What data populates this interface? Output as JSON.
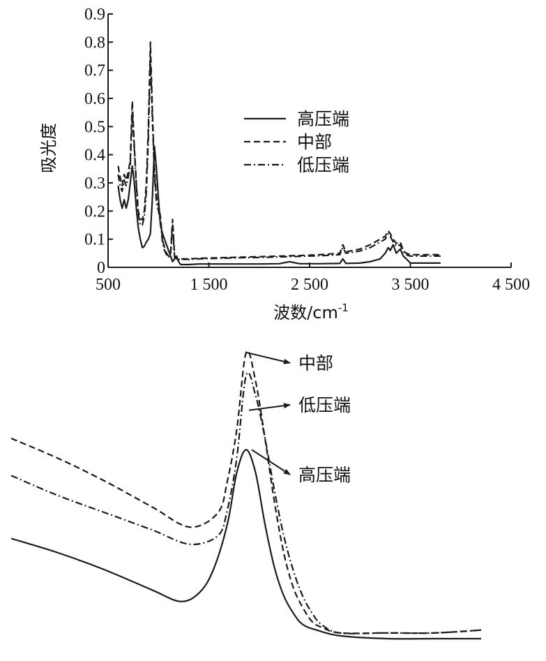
{
  "chart_data": [
    {
      "type": "line",
      "title": "",
      "xlabel": "波数/cm",
      "xlabel_sup": "-1",
      "ylabel": "吸光度",
      "xlim": [
        500,
        4500
      ],
      "ylim": [
        0,
        0.9
      ],
      "x_ticks": [
        500,
        1500,
        2500,
        3500,
        4500
      ],
      "x_tick_labels": [
        "500",
        "1 500",
        "2 500",
        "3 500",
        "4 500"
      ],
      "y_ticks": [
        0,
        0.1,
        0.2,
        0.3,
        0.4,
        0.5,
        0.6,
        0.7,
        0.8,
        0.9
      ],
      "y_tick_labels": [
        "0",
        "0.1",
        "0.2",
        "0.3",
        "0.4",
        "0.5",
        "0.6",
        "0.7",
        "0.8",
        "0.9"
      ],
      "grid": false,
      "legend_position": "center-right",
      "series": [
        {
          "name": "高压端",
          "style": "solid",
          "x": [
            600,
            620,
            640,
            660,
            680,
            700,
            720,
            740,
            760,
            780,
            800,
            820,
            840,
            860,
            880,
            900,
            920,
            940,
            960,
            980,
            1000,
            1020,
            1040,
            1060,
            1080,
            1100,
            1120,
            1140,
            1160,
            1180,
            1200,
            1220,
            1240,
            1260,
            1300,
            1400,
            1600,
            1800,
            2000,
            2200,
            2300,
            2400,
            2600,
            2800,
            2830,
            2860,
            3000,
            3100,
            3200,
            3250,
            3280,
            3300,
            3330,
            3360,
            3400,
            3430,
            3460,
            3500,
            3600,
            3700,
            3800
          ],
          "y": [
            0.29,
            0.24,
            0.21,
            0.24,
            0.21,
            0.24,
            0.3,
            0.36,
            0.3,
            0.21,
            0.14,
            0.1,
            0.07,
            0.075,
            0.09,
            0.1,
            0.12,
            0.25,
            0.43,
            0.35,
            0.24,
            0.15,
            0.12,
            0.1,
            0.08,
            0.06,
            0.04,
            0.02,
            0.03,
            0.04,
            0.02,
            0.01,
            0.01,
            0.01,
            0.01,
            0.012,
            0.012,
            0.012,
            0.012,
            0.013,
            0.02,
            0.013,
            0.013,
            0.014,
            0.03,
            0.014,
            0.015,
            0.02,
            0.03,
            0.05,
            0.07,
            0.06,
            0.08,
            0.05,
            0.065,
            0.04,
            0.03,
            0.015,
            0.015,
            0.015,
            0.015
          ]
        },
        {
          "name": "中部",
          "style": "dashed",
          "x": [
            600,
            620,
            640,
            660,
            680,
            700,
            720,
            740,
            760,
            780,
            800,
            820,
            840,
            860,
            880,
            900,
            920,
            940,
            960,
            980,
            1000,
            1020,
            1040,
            1060,
            1080,
            1100,
            1120,
            1140,
            1160,
            1180,
            1200,
            1220,
            1240,
            1260,
            1300,
            1400,
            1600,
            1800,
            2000,
            2200,
            2400,
            2600,
            2800,
            2830,
            2860,
            3000,
            3100,
            3200,
            3250,
            3280,
            3300,
            3330,
            3360,
            3400,
            3430,
            3460,
            3500,
            3600,
            3700,
            3800
          ],
          "y": [
            0.36,
            0.32,
            0.29,
            0.33,
            0.31,
            0.34,
            0.38,
            0.59,
            0.43,
            0.3,
            0.2,
            0.17,
            0.17,
            0.2,
            0.3,
            0.5,
            0.8,
            0.55,
            0.35,
            0.25,
            0.22,
            0.18,
            0.1,
            0.07,
            0.05,
            0.04,
            0.05,
            0.17,
            0.04,
            0.03,
            0.03,
            0.03,
            0.03,
            0.03,
            0.03,
            0.032,
            0.034,
            0.036,
            0.038,
            0.04,
            0.042,
            0.045,
            0.05,
            0.08,
            0.055,
            0.065,
            0.08,
            0.1,
            0.11,
            0.13,
            0.12,
            0.1,
            0.085,
            0.09,
            0.06,
            0.05,
            0.045,
            0.045,
            0.045,
            0.045
          ]
        },
        {
          "name": "低压端",
          "style": "dashdot",
          "x": [
            600,
            620,
            640,
            660,
            680,
            700,
            720,
            740,
            760,
            780,
            800,
            820,
            840,
            860,
            880,
            900,
            920,
            940,
            960,
            980,
            1000,
            1020,
            1040,
            1060,
            1080,
            1100,
            1120,
            1140,
            1160,
            1180,
            1200,
            1220,
            1240,
            1260,
            1300,
            1400,
            1600,
            1800,
            2000,
            2200,
            2400,
            2600,
            2800,
            2830,
            2860,
            3000,
            3100,
            3200,
            3250,
            3280,
            3300,
            3330,
            3360,
            3400,
            3430,
            3460,
            3500,
            3600,
            3700,
            3800
          ],
          "y": [
            0.33,
            0.29,
            0.27,
            0.31,
            0.29,
            0.32,
            0.36,
            0.55,
            0.42,
            0.29,
            0.19,
            0.15,
            0.15,
            0.18,
            0.27,
            0.46,
            0.75,
            0.52,
            0.33,
            0.23,
            0.2,
            0.16,
            0.09,
            0.06,
            0.045,
            0.035,
            0.045,
            0.15,
            0.035,
            0.03,
            0.028,
            0.028,
            0.028,
            0.028,
            0.028,
            0.03,
            0.032,
            0.034,
            0.035,
            0.037,
            0.039,
            0.041,
            0.045,
            0.07,
            0.05,
            0.058,
            0.07,
            0.09,
            0.1,
            0.12,
            0.11,
            0.09,
            0.075,
            0.08,
            0.055,
            0.045,
            0.04,
            0.04,
            0.04,
            0.04
          ]
        }
      ]
    },
    {
      "type": "line",
      "title": "",
      "xlabel": "",
      "ylabel": "",
      "xlim": [
        0,
        100
      ],
      "ylim": [
        0,
        100
      ],
      "grid": false,
      "axes_visible": false,
      "series": [
        {
          "name": "中部",
          "style": "dashed",
          "x": [
            0,
            10,
            20,
            30,
            38,
            44,
            46,
            48,
            50,
            52,
            54,
            56,
            58,
            60,
            62,
            64,
            66,
            70,
            80,
            90,
            100
          ],
          "y": [
            70,
            63,
            55,
            46,
            39,
            44,
            55,
            73,
            100,
            90,
            70,
            48,
            30,
            18,
            11,
            6,
            4,
            2,
            2,
            2,
            3
          ]
        },
        {
          "name": "低压端",
          "style": "dashdot",
          "x": [
            0,
            10,
            20,
            30,
            38,
            44,
            46,
            48,
            50,
            52,
            54,
            56,
            58,
            60,
            62,
            64,
            66,
            70,
            80,
            90,
            100
          ],
          "y": [
            57,
            50,
            44,
            38,
            33,
            36,
            45,
            63,
            92,
            85,
            70,
            52,
            36,
            24,
            15,
            9,
            5,
            2,
            2,
            2,
            3
          ]
        },
        {
          "name": "高压端",
          "style": "solid",
          "x": [
            0,
            10,
            20,
            30,
            36,
            40,
            43,
            46,
            48,
            50,
            52,
            54,
            56,
            58,
            60,
            62,
            65,
            70,
            80,
            90,
            100
          ],
          "y": [
            35,
            30,
            24,
            17,
            13,
            16,
            24,
            40,
            58,
            66,
            58,
            40,
            25,
            15,
            9,
            5,
            3,
            1,
            0,
            0,
            0
          ]
        }
      ],
      "callouts": [
        "中部",
        "低压端",
        "高压端"
      ]
    }
  ],
  "colors": {
    "ink": "#1a1a1a",
    "background": "#ffffff"
  }
}
